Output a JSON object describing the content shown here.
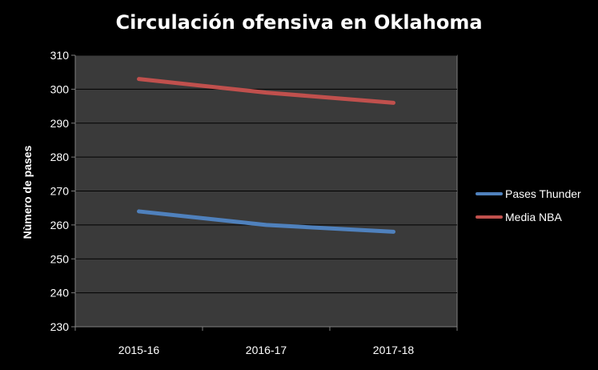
{
  "chart_data": {
    "type": "line",
    "title": "Circulación ofensiva en Oklahoma",
    "xlabel": "",
    "ylabel": "Nùmero de pases",
    "categories": [
      "2015-16",
      "2016-17",
      "2017-18"
    ],
    "ylim": [
      230,
      310
    ],
    "yticks": [
      230,
      240,
      250,
      260,
      270,
      280,
      290,
      300,
      310
    ],
    "ytick_labels": [
      "230",
      "240",
      "250",
      "260",
      "270",
      "280",
      "290",
      "300",
      "310"
    ],
    "grid": true,
    "legend_position": "right",
    "series": [
      {
        "name": "Pases Thunder",
        "color": "#4f81bd",
        "values": [
          264,
          260,
          258
        ]
      },
      {
        "name": "Media NBA",
        "color": "#c0504d",
        "values": [
          303,
          299,
          296
        ]
      }
    ]
  },
  "colors": {
    "background": "#000000",
    "plot_area": "#3a3a3a",
    "gridline": "#000000",
    "text": "#ffffff"
  }
}
